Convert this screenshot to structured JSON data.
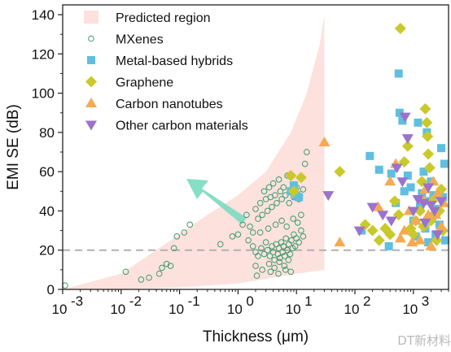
{
  "chart_data": {
    "type": "scatter",
    "x_scale": "log",
    "xlabel": "Thickness (μm)",
    "ylabel": "EMI SE (dB)",
    "xlim": [
      0.001,
      4000
    ],
    "ylim": [
      0,
      145
    ],
    "x_ticks": [
      {
        "value": 0.001,
        "base": "10",
        "exp": "-3"
      },
      {
        "value": 0.01,
        "base": "10",
        "exp": "-2"
      },
      {
        "value": 0.1,
        "base": "10",
        "exp": "-1"
      },
      {
        "value": 1,
        "base": "10",
        "exp": "0"
      },
      {
        "value": 10,
        "base": "10",
        "exp": "1"
      },
      {
        "value": 100,
        "base": "10",
        "exp": "2"
      },
      {
        "value": 1000,
        "base": "10",
        "exp": "3"
      }
    ],
    "y_ticks": [
      0,
      20,
      40,
      60,
      80,
      100,
      120,
      140
    ],
    "reference_line_y": 20,
    "legend_position": "top-left",
    "predicted_region": {
      "name": "Predicted region",
      "color": "#fde1dc",
      "x_end": 30,
      "lower": [
        [
          0.001,
          0
        ],
        [
          0.01,
          0
        ],
        [
          0.1,
          1
        ],
        [
          1,
          3
        ],
        [
          10,
          8
        ],
        [
          30,
          10
        ]
      ],
      "upper": [
        [
          0.001,
          0
        ],
        [
          0.01,
          8
        ],
        [
          0.05,
          22
        ],
        [
          0.3,
          38
        ],
        [
          1,
          48
        ],
        [
          3,
          60
        ],
        [
          8,
          80
        ],
        [
          15,
          100
        ],
        [
          25,
          125
        ],
        [
          30,
          140
        ]
      ]
    },
    "series": [
      {
        "name": "MXenes",
        "marker": "open-circle",
        "color": "#3e9a6e",
        "points": [
          [
            0.0011,
            2
          ],
          [
            0.012,
            9
          ],
          [
            0.022,
            5
          ],
          [
            0.03,
            6
          ],
          [
            0.045,
            8
          ],
          [
            0.05,
            11
          ],
          [
            0.06,
            13
          ],
          [
            0.07,
            12
          ],
          [
            0.08,
            21
          ],
          [
            0.09,
            27
          ],
          [
            0.12,
            29
          ],
          [
            0.15,
            33
          ],
          [
            0.5,
            23
          ],
          [
            0.8,
            27
          ],
          [
            1.0,
            28
          ],
          [
            1.2,
            33
          ],
          [
            1.4,
            38
          ],
          [
            1.6,
            32
          ],
          [
            1.8,
            29
          ],
          [
            2,
            41
          ],
          [
            2.2,
            36
          ],
          [
            2.4,
            44
          ],
          [
            2.6,
            38
          ],
          [
            2.8,
            50
          ],
          [
            3,
            46
          ],
          [
            3.2,
            40
          ],
          [
            3.4,
            52
          ],
          [
            3.6,
            47
          ],
          [
            3.8,
            42
          ],
          [
            4,
            54
          ],
          [
            4.3,
            48
          ],
          [
            4.6,
            44
          ],
          [
            5,
            56
          ],
          [
            5.3,
            50
          ],
          [
            5.6,
            46
          ],
          [
            6,
            52
          ],
          [
            6.5,
            48
          ],
          [
            7,
            58
          ],
          [
            7.5,
            44
          ],
          [
            8,
            50
          ],
          [
            9,
            47
          ],
          [
            10,
            52
          ],
          [
            11,
            46
          ],
          [
            12,
            38
          ],
          [
            13,
            51
          ],
          [
            14,
            64
          ],
          [
            15,
            70
          ],
          [
            1.5,
            25
          ],
          [
            1.8,
            22
          ],
          [
            2,
            19
          ],
          [
            2.2,
            17
          ],
          [
            2.5,
            21
          ],
          [
            2.8,
            18
          ],
          [
            3,
            24
          ],
          [
            3.2,
            20
          ],
          [
            3.5,
            17
          ],
          [
            3.8,
            22
          ],
          [
            4,
            19
          ],
          [
            4.2,
            15
          ],
          [
            4.5,
            23
          ],
          [
            4.8,
            18
          ],
          [
            5,
            21
          ],
          [
            5.2,
            16
          ],
          [
            5.5,
            24
          ],
          [
            5.8,
            19
          ],
          [
            6,
            22
          ],
          [
            6.3,
            17
          ],
          [
            6.6,
            26
          ],
          [
            7,
            20
          ],
          [
            7.4,
            23
          ],
          [
            7.8,
            18
          ],
          [
            8.2,
            25
          ],
          [
            8.6,
            21
          ],
          [
            9,
            28
          ],
          [
            9.5,
            22
          ],
          [
            10,
            26
          ],
          [
            11,
            24
          ],
          [
            12,
            30
          ],
          [
            13,
            27
          ],
          [
            2.4,
            29
          ],
          [
            3.3,
            31
          ],
          [
            4.4,
            33
          ],
          [
            5.6,
            35
          ],
          [
            6.8,
            32
          ],
          [
            8.8,
            36
          ],
          [
            10.5,
            34
          ],
          [
            2,
            12
          ],
          [
            2.6,
            10
          ],
          [
            3.4,
            13
          ],
          [
            4.2,
            11
          ],
          [
            5.1,
            14
          ],
          [
            6.2,
            12
          ],
          [
            7.3,
            15
          ],
          [
            2.1,
            7
          ],
          [
            3.6,
            9
          ],
          [
            4.9,
            8
          ],
          [
            6.5,
            10
          ],
          [
            8,
            9
          ]
        ]
      },
      {
        "name": "Metal-based hybrids",
        "marker": "square",
        "color": "#5fbfe0",
        "points": [
          [
            8,
            50
          ],
          [
            9,
            53
          ],
          [
            10,
            48
          ],
          [
            11,
            47
          ],
          [
            130,
            30
          ],
          [
            180,
            68
          ],
          [
            260,
            61
          ],
          [
            380,
            22
          ],
          [
            420,
            59
          ],
          [
            500,
            44
          ],
          [
            560,
            110
          ],
          [
            580,
            90
          ],
          [
            650,
            86
          ],
          [
            700,
            50
          ],
          [
            800,
            58
          ],
          [
            900,
            52
          ],
          [
            1000,
            35
          ],
          [
            1100,
            27
          ],
          [
            1200,
            85
          ],
          [
            1300,
            42
          ],
          [
            1400,
            49
          ],
          [
            1500,
            60
          ],
          [
            1600,
            31
          ],
          [
            1700,
            80
          ],
          [
            1800,
            24
          ],
          [
            1900,
            45
          ],
          [
            2000,
            55
          ],
          [
            2100,
            36
          ],
          [
            2200,
            48
          ],
          [
            2400,
            28
          ],
          [
            2600,
            41
          ],
          [
            2800,
            33
          ],
          [
            3000,
            72
          ],
          [
            3200,
            47
          ],
          [
            3400,
            64
          ],
          [
            3500,
            25
          ]
        ]
      },
      {
        "name": "Graphene",
        "marker": "diamond",
        "color": "#c9c92c",
        "points": [
          [
            8,
            58
          ],
          [
            9,
            50
          ],
          [
            12,
            57
          ],
          [
            55,
            60
          ],
          [
            150,
            33
          ],
          [
            200,
            30
          ],
          [
            260,
            25
          ],
          [
            330,
            31
          ],
          [
            400,
            28
          ],
          [
            480,
            45
          ],
          [
            560,
            38
          ],
          [
            600,
            133
          ],
          [
            700,
            65
          ],
          [
            800,
            73
          ],
          [
            900,
            31
          ],
          [
            1000,
            28
          ],
          [
            1100,
            35
          ],
          [
            1300,
            40
          ],
          [
            1400,
            55
          ],
          [
            1500,
            32
          ],
          [
            1600,
            92
          ],
          [
            1700,
            85
          ],
          [
            1750,
            78
          ],
          [
            1800,
            69
          ],
          [
            1900,
            62
          ],
          [
            2000,
            35
          ],
          [
            2100,
            45
          ],
          [
            2200,
            38
          ],
          [
            2500,
            25
          ],
          [
            2800,
            40
          ],
          [
            3000,
            51
          ],
          [
            3200,
            30
          ]
        ]
      },
      {
        "name": "Carbon nanotubes",
        "marker": "triangle-up",
        "color": "#f5aa52",
        "points": [
          [
            30,
            75
          ],
          [
            55,
            24
          ],
          [
            250,
            42
          ],
          [
            400,
            55
          ],
          [
            500,
            64
          ],
          [
            600,
            26
          ],
          [
            700,
            30
          ],
          [
            850,
            40
          ],
          [
            950,
            24
          ],
          [
            1100,
            35
          ],
          [
            1300,
            25
          ],
          [
            1450,
            46
          ],
          [
            1600,
            51
          ],
          [
            1800,
            38
          ],
          [
            2000,
            22
          ],
          [
            2200,
            55
          ],
          [
            2400,
            38
          ],
          [
            2600,
            49
          ],
          [
            3000,
            32
          ],
          [
            3300,
            44
          ]
        ]
      },
      {
        "name": "Other carbon materials",
        "marker": "triangle-down",
        "color": "#9b72cc",
        "points": [
          [
            35,
            48
          ],
          [
            120,
            30
          ],
          [
            200,
            42
          ],
          [
            300,
            38
          ],
          [
            420,
            35
          ],
          [
            520,
            62
          ],
          [
            650,
            55
          ],
          [
            720,
            88
          ],
          [
            800,
            77
          ],
          [
            1000,
            40
          ],
          [
            1200,
            46
          ],
          [
            1500,
            44
          ],
          [
            1600,
            34
          ],
          [
            1800,
            52
          ],
          [
            2000,
            43
          ],
          [
            2300,
            40
          ],
          [
            2600,
            28
          ],
          [
            3000,
            45
          ]
        ]
      }
    ]
  },
  "watermark": "DT新材料"
}
